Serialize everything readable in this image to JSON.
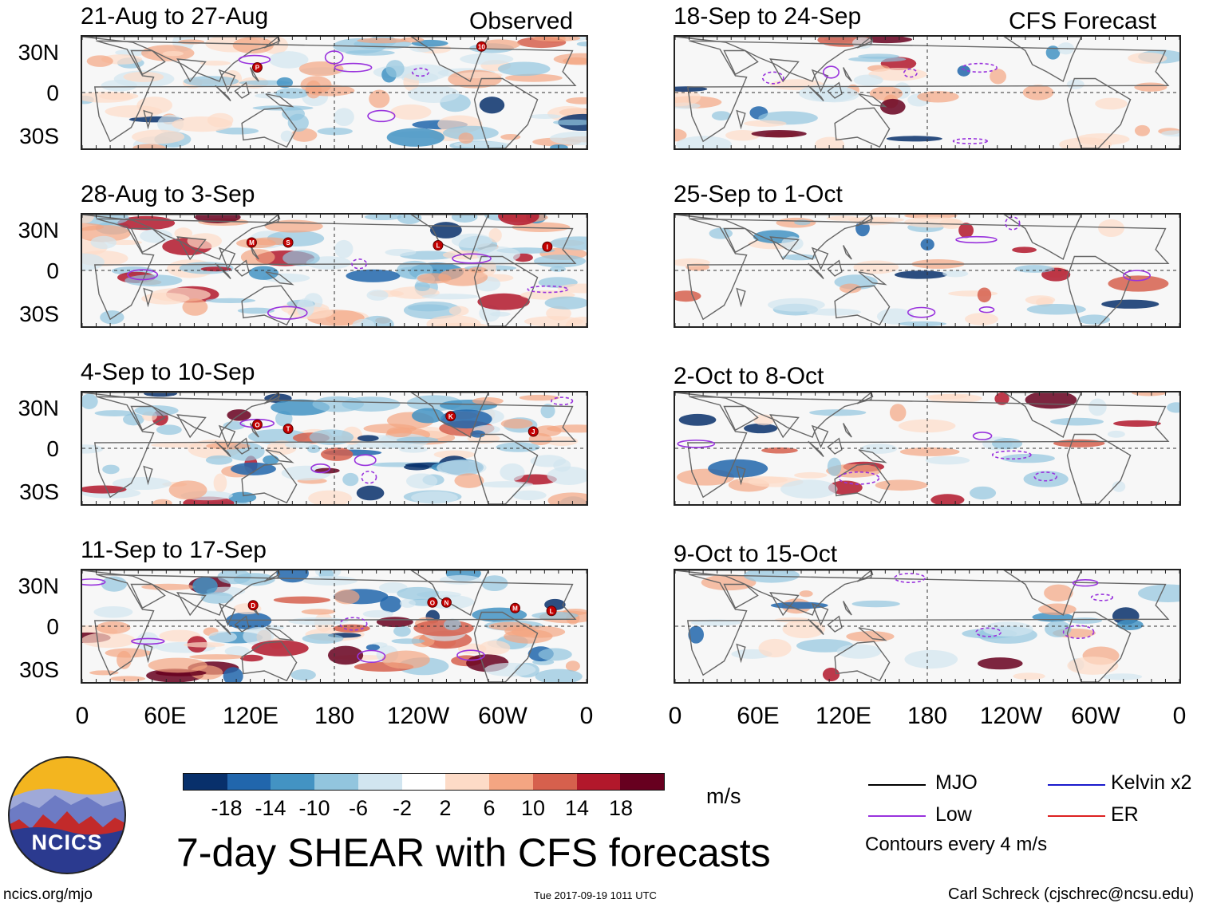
{
  "header": {
    "observed_label": "Observed",
    "forecast_label": "CFS Forecast"
  },
  "lat_labels": [
    "30N",
    "0",
    "30S"
  ],
  "lon_labels": [
    "0",
    "60E",
    "120E",
    "180",
    "120W",
    "60W",
    "0"
  ],
  "chart_data": {
    "type": "heatmap",
    "title": "7-day SHEAR with CFS forecasts",
    "variable": "SHEAR",
    "units": "m/s",
    "x_axis": {
      "ticks": [
        "0",
        "60E",
        "120E",
        "180",
        "120W",
        "60W",
        "0"
      ],
      "range_deg_east": [
        0,
        360
      ]
    },
    "y_axis": {
      "ticks": [
        "30N",
        "0",
        "30S"
      ],
      "range_deg": [
        -40,
        40
      ]
    },
    "colorbar": {
      "labels": [
        "-18",
        "-14",
        "-10",
        "-6",
        "-2",
        "2",
        "6",
        "10",
        "14",
        "18"
      ],
      "colors": [
        "#08306b",
        "#2166ac",
        "#4393c3",
        "#92c5de",
        "#d1e5f0",
        "#ffffff",
        "#fddbc7",
        "#f4a582",
        "#d6604d",
        "#b2182b",
        "#67001f"
      ]
    },
    "legend": [
      {
        "label": "MJO",
        "color": "#000000"
      },
      {
        "label": "Kelvin x2",
        "color": "#1a1acc"
      },
      {
        "label": "Low",
        "color": "#9933dd"
      },
      {
        "label": "ER",
        "color": "#dd2222"
      }
    ],
    "contour_note": "Contours every 4 m/s",
    "panels": [
      {
        "id": "p1",
        "period": "21-Aug to 27-Aug",
        "kind": "observed",
        "storms": [
          {
            "label": "P",
            "lon": 125,
            "lat": 18
          },
          {
            "label": "10",
            "lon": 285,
            "lat": 33
          }
        ]
      },
      {
        "id": "p2",
        "period": "28-Aug to 3-Sep",
        "kind": "observed",
        "storms": [
          {
            "label": "M",
            "lon": 121,
            "lat": 20
          },
          {
            "label": "S",
            "lon": 147,
            "lat": 20
          },
          {
            "label": "L",
            "lon": 254,
            "lat": 18
          },
          {
            "label": "I",
            "lon": 332,
            "lat": 17
          }
        ]
      },
      {
        "id": "p3",
        "period": "4-Sep to 10-Sep",
        "kind": "observed",
        "storms": [
          {
            "label": "O",
            "lon": 125,
            "lat": 17
          },
          {
            "label": "T",
            "lon": 147,
            "lat": 14
          },
          {
            "label": "K",
            "lon": 263,
            "lat": 23
          },
          {
            "label": "J",
            "lon": 322,
            "lat": 12
          }
        ]
      },
      {
        "id": "p4",
        "period": "11-Sep to 17-Sep",
        "kind": "observed",
        "storms": [
          {
            "label": "D",
            "lon": 122,
            "lat": 15
          },
          {
            "label": "O",
            "lon": 250,
            "lat": 17
          },
          {
            "label": "N",
            "lon": 260,
            "lat": 17
          },
          {
            "label": "M",
            "lon": 309,
            "lat": 13
          },
          {
            "label": "L",
            "lon": 335,
            "lat": 11
          }
        ]
      },
      {
        "id": "p5",
        "period": "18-Sep to 24-Sep",
        "kind": "forecast",
        "storms": []
      },
      {
        "id": "p6",
        "period": "25-Sep to 1-Oct",
        "kind": "forecast",
        "storms": []
      },
      {
        "id": "p7",
        "period": "2-Oct to 8-Oct",
        "kind": "forecast",
        "storms": []
      },
      {
        "id": "p8",
        "period": "9-Oct to 15-Oct",
        "kind": "forecast",
        "storms": []
      }
    ]
  },
  "colorbar_units": "m/s",
  "legend_labels": {
    "mjo": "MJO",
    "kelvin": "Kelvin x2",
    "low": "Low",
    "er": "ER"
  },
  "contour_note": "Contours every 4 m/s",
  "main_title": "7-day SHEAR with CFS forecasts",
  "logo_text": "NCICS",
  "footer": {
    "url": "ncics.org/mjo",
    "timestamp": "Tue 2017-09-19 1011 UTC",
    "credit": "Carl Schreck (cjschrec@ncsu.edu)"
  }
}
